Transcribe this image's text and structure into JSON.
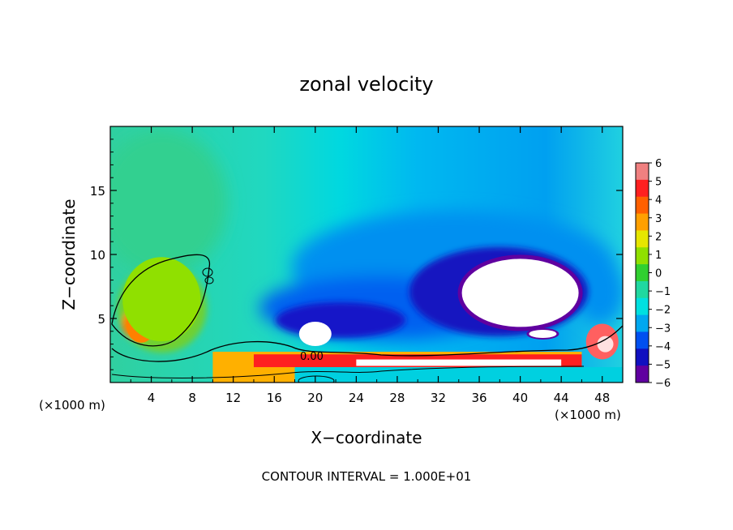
{
  "chart_data": {
    "type": "heatmap",
    "title": "zonal velocity",
    "xlabel": "X−coordinate",
    "ylabel": "Z−coordinate",
    "xlim": [
      0,
      50
    ],
    "ylim": [
      0,
      20
    ],
    "x_ticks": [
      4,
      8,
      12,
      16,
      20,
      24,
      28,
      32,
      36,
      40,
      44,
      48
    ],
    "y_ticks": [
      5,
      10,
      15
    ],
    "x_units": "(×1000 m)",
    "x_units_right": "(×1000 m)",
    "contour_label": "0.00",
    "footer": "CONTOUR INTERVAL = 1.000E+01",
    "colorbar": {
      "min": -6,
      "max": 6,
      "labels": [
        "6",
        "5",
        "4",
        "3",
        "2",
        "1",
        "0",
        "−1",
        "−2",
        "−3",
        "−4",
        "−5",
        "−6"
      ],
      "colors": [
        "#f08080",
        "#ff2020",
        "#ff6000",
        "#ffa000",
        "#e6e600",
        "#90e000",
        "#30d030",
        "#20d8a0",
        "#00e0e0",
        "#00a8f0",
        "#0050f0",
        "#1010c0",
        "#6000a0"
      ]
    },
    "features": [
      {
        "name": "positive-core-left",
        "x": 3,
        "z": 4.5,
        "value": 3.5
      },
      {
        "name": "positive-region-left",
        "x": 5,
        "z": 6.5,
        "value": 1
      },
      {
        "name": "negative-core-upper",
        "x": 40,
        "z": 7,
        "value": -7
      },
      {
        "name": "negative-core-small",
        "x": 20,
        "z": 3.8,
        "value": -7
      },
      {
        "name": "surface-jet",
        "x": 32,
        "z": 1.5,
        "value": 5
      }
    ]
  }
}
